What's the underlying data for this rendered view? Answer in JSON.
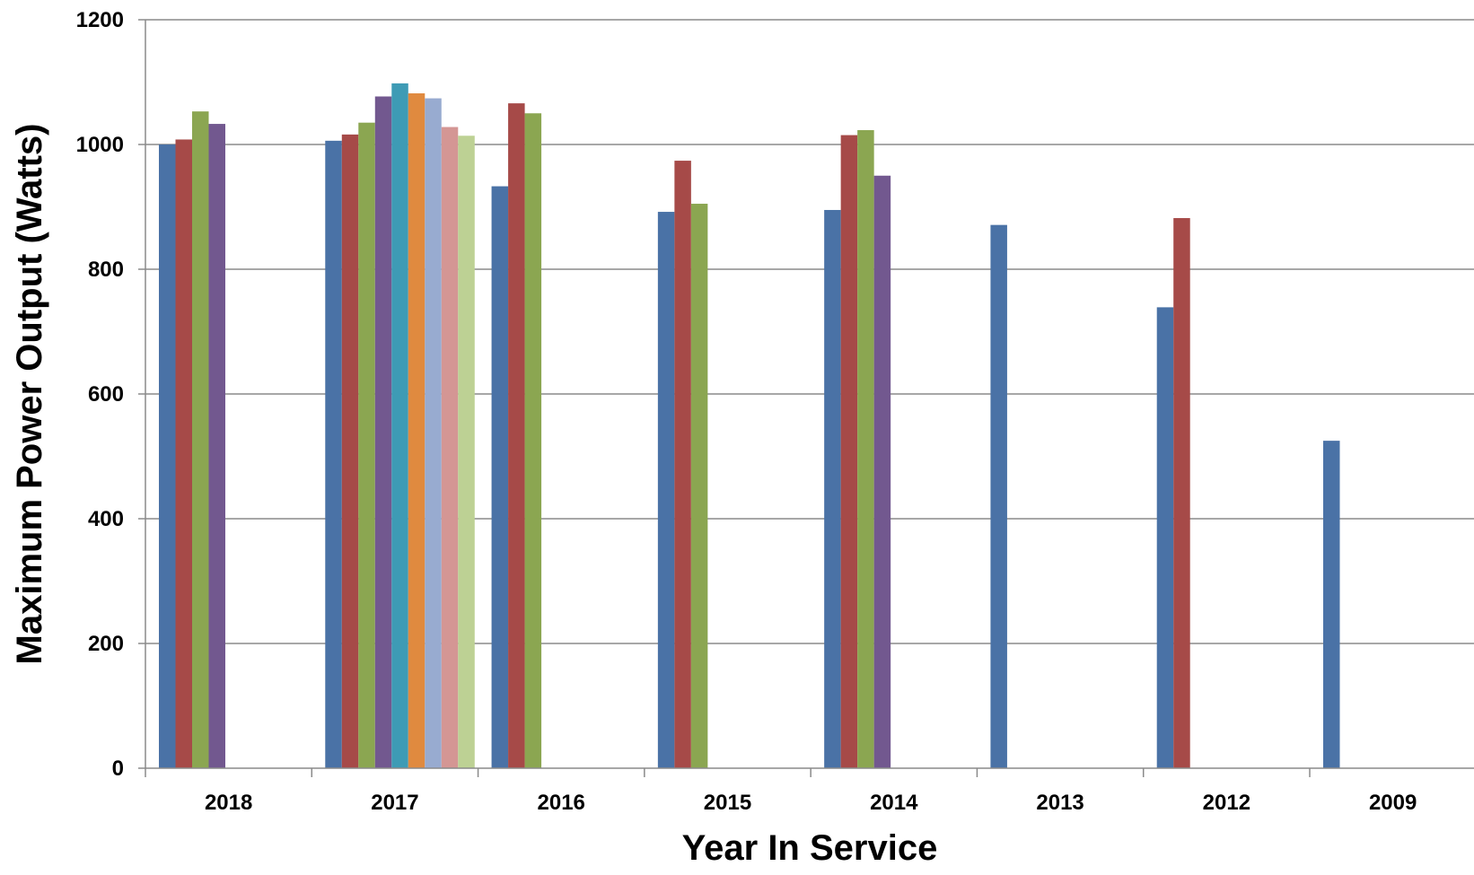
{
  "chart_data": {
    "type": "bar",
    "title": "",
    "xlabel": "Year In Service",
    "ylabel": "Maximum Power Output (Watts)",
    "ylim": [
      0,
      1200
    ],
    "yticks": [
      0,
      200,
      400,
      600,
      800,
      1000,
      1200
    ],
    "grid": true,
    "legend": "none",
    "categories": [
      "2018",
      "2017",
      "2016",
      "2015",
      "2014",
      "2013",
      "2012",
      "2009"
    ],
    "series": [
      {
        "color": "#4a72a6",
        "values": [
          1000,
          1006,
          933,
          892,
          895,
          871,
          739,
          525
        ]
      },
      {
        "color": "#a64a48",
        "values": [
          1008,
          1016,
          1066,
          974,
          1015,
          null,
          882,
          null
        ]
      },
      {
        "color": "#8ba651",
        "values": [
          1053,
          1035,
          1050,
          905,
          1023,
          null,
          null,
          null
        ]
      },
      {
        "color": "#72588f",
        "values": [
          1033,
          1077,
          null,
          null,
          950,
          null,
          null,
          null
        ]
      },
      {
        "color": "#3e9bb5",
        "values": [
          null,
          1098,
          null,
          null,
          null,
          null,
          null,
          null
        ]
      },
      {
        "color": "#e08a3f",
        "values": [
          null,
          1082,
          null,
          null,
          null,
          null,
          null,
          null
        ]
      },
      {
        "color": "#98abd0",
        "values": [
          null,
          1074,
          null,
          null,
          null,
          null,
          null,
          null
        ]
      },
      {
        "color": "#d49694",
        "values": [
          null,
          1028,
          null,
          null,
          null,
          null,
          null,
          null
        ]
      },
      {
        "color": "#bdd194",
        "values": [
          null,
          1014,
          null,
          null,
          null,
          null,
          null,
          null
        ]
      }
    ]
  }
}
